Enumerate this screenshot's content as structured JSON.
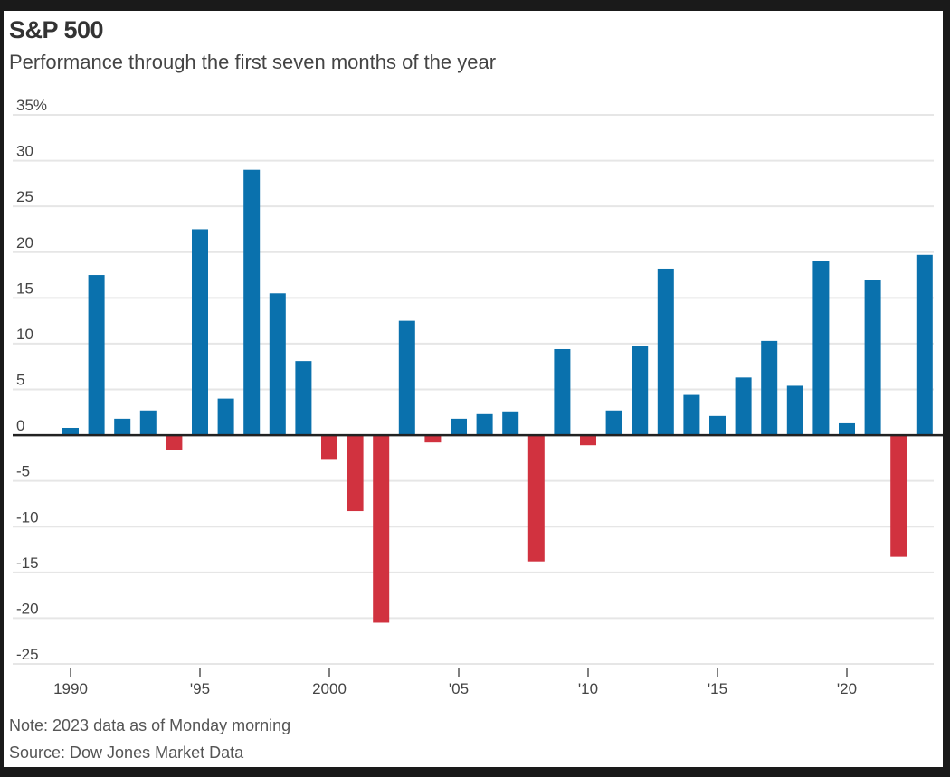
{
  "chart_data": {
    "type": "bar",
    "title": "S&P 500",
    "subtitle": "Performance through the first seven months of the year",
    "xlabel": "",
    "ylabel": "",
    "ylim": [
      -25,
      35
    ],
    "yticks": [
      35,
      30,
      25,
      20,
      15,
      10,
      5,
      0,
      -5,
      -10,
      -15,
      -20,
      -25
    ],
    "ytick_labels": [
      "35%",
      "30",
      "25",
      "20",
      "15",
      "10",
      "5",
      "0",
      "-5",
      "-10",
      "-15",
      "-20",
      "-25"
    ],
    "xticks": [
      {
        "year": 1990,
        "label": "1990"
      },
      {
        "year": 1995,
        "label": "'95"
      },
      {
        "year": 2000,
        "label": "2000"
      },
      {
        "year": 2005,
        "label": "'05"
      },
      {
        "year": 2010,
        "label": "'10"
      },
      {
        "year": 2015,
        "label": "'15"
      },
      {
        "year": 2020,
        "label": "'20"
      }
    ],
    "grid": true,
    "colors": {
      "positive": "#0a71ad",
      "negative": "#d1323f",
      "grid": "#e6e6e6",
      "zero_line": "#222222"
    },
    "data": [
      {
        "year": 1990,
        "value": 0.8
      },
      {
        "year": 1991,
        "value": 17.5
      },
      {
        "year": 1992,
        "value": 1.8
      },
      {
        "year": 1993,
        "value": 2.7
      },
      {
        "year": 1994,
        "value": -1.6
      },
      {
        "year": 1995,
        "value": 22.5
      },
      {
        "year": 1996,
        "value": 4.0
      },
      {
        "year": 1997,
        "value": 29.0
      },
      {
        "year": 1998,
        "value": 15.5
      },
      {
        "year": 1999,
        "value": 8.1
      },
      {
        "year": 2000,
        "value": -2.6
      },
      {
        "year": 2001,
        "value": -8.3
      },
      {
        "year": 2002,
        "value": -20.5
      },
      {
        "year": 2003,
        "value": 12.5
      },
      {
        "year": 2004,
        "value": -0.8
      },
      {
        "year": 2005,
        "value": 1.8
      },
      {
        "year": 2006,
        "value": 2.3
      },
      {
        "year": 2007,
        "value": 2.6
      },
      {
        "year": 2008,
        "value": -13.8
      },
      {
        "year": 2009,
        "value": 9.4
      },
      {
        "year": 2010,
        "value": -1.1
      },
      {
        "year": 2011,
        "value": 2.7
      },
      {
        "year": 2012,
        "value": 9.7
      },
      {
        "year": 2013,
        "value": 18.2
      },
      {
        "year": 2014,
        "value": 4.4
      },
      {
        "year": 2015,
        "value": 2.1
      },
      {
        "year": 2016,
        "value": 6.3
      },
      {
        "year": 2017,
        "value": 10.3
      },
      {
        "year": 2018,
        "value": 5.4
      },
      {
        "year": 2019,
        "value": 19.0
      },
      {
        "year": 2020,
        "value": 1.3
      },
      {
        "year": 2021,
        "value": 17.0
      },
      {
        "year": 2022,
        "value": -13.3
      },
      {
        "year": 2023,
        "value": 19.7
      }
    ]
  },
  "footer": {
    "note": "Note: 2023 data as of Monday morning",
    "source": "Source: Dow Jones Market Data"
  }
}
